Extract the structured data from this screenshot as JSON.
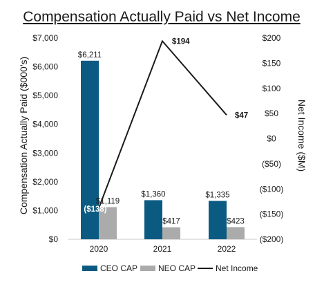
{
  "chart_data": {
    "type": "bar",
    "title": "Compensation Actually Paid vs Net Income",
    "categories": [
      "2020",
      "2021",
      "2022"
    ],
    "series": [
      {
        "name": "CEO CAP",
        "type": "bar",
        "axis": "left",
        "values": [
          6211,
          1360,
          1335
        ],
        "labels": [
          "$6,211",
          "$1,360",
          "$1,335"
        ],
        "color": "#0b5a82"
      },
      {
        "name": "NEO CAP",
        "type": "bar",
        "axis": "left",
        "values": [
          1119,
          417,
          423
        ],
        "labels": [
          "$1,119",
          "$417",
          "$423"
        ],
        "color": "#ababab"
      },
      {
        "name": "Net Income",
        "type": "line",
        "axis": "right",
        "values": [
          -138,
          194,
          47
        ],
        "labels": [
          "($138)",
          "$194",
          "$47"
        ],
        "color": "#1a1a1a"
      }
    ],
    "ylabel": "Compensation Actually Paid ($000's)",
    "ylim": [
      0,
      7000
    ],
    "yticks": [
      "$0",
      "$1,000",
      "$2,000",
      "$3,000",
      "$4,000",
      "$5,000",
      "$6,000",
      "$7,000"
    ],
    "y2label": "Net Income ($M)",
    "y2lim": [
      -200,
      200
    ],
    "y2ticks": [
      "($200)",
      "($150)",
      "($100)",
      "($50)",
      "$0",
      "$50",
      "$100",
      "$150",
      "$200"
    ],
    "legend_position": "bottom",
    "grid": false
  }
}
